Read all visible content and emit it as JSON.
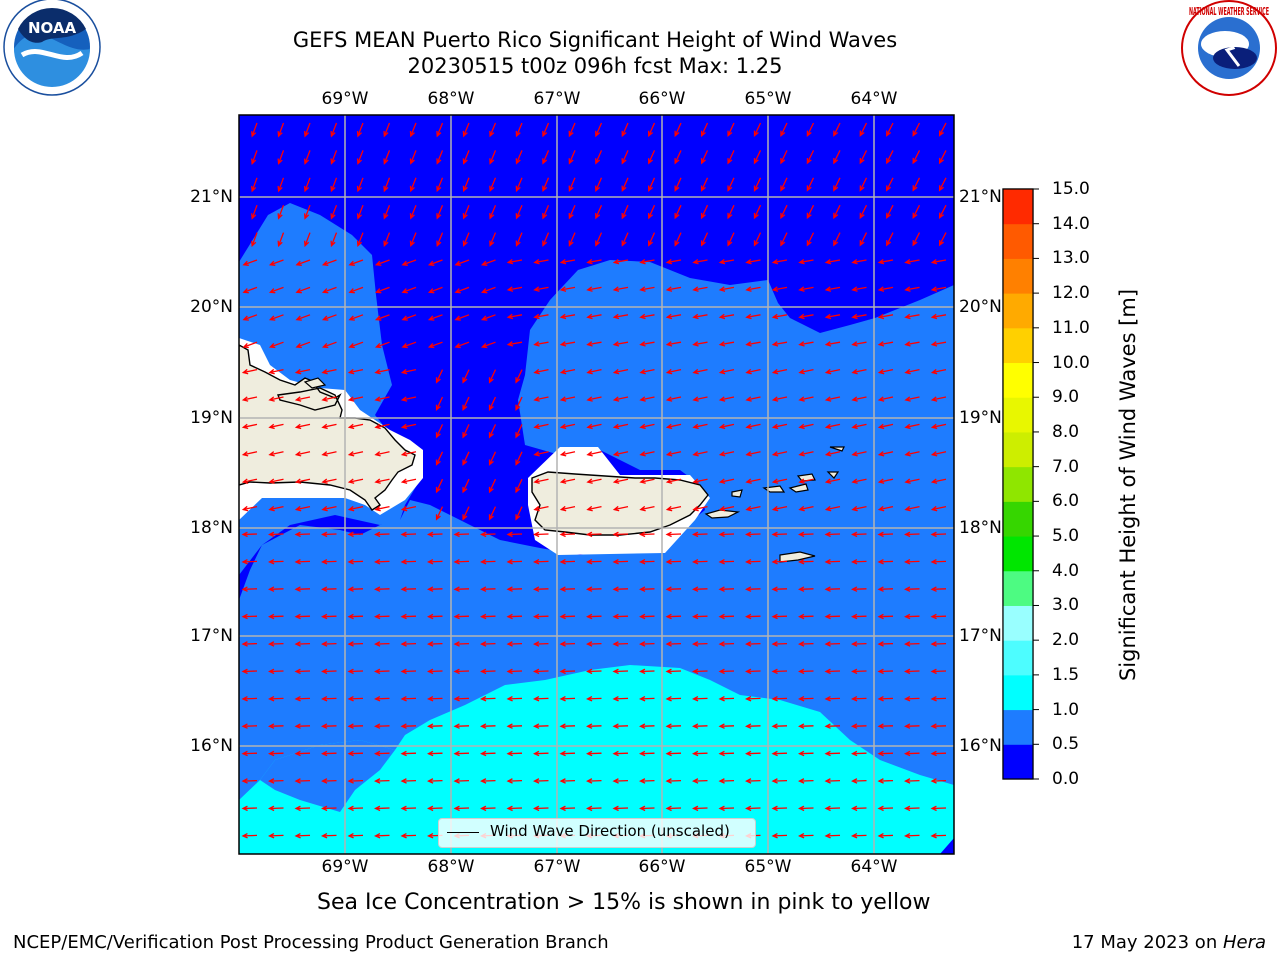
{
  "title": {
    "line1": "GEFS MEAN Puerto Rico Significant Height of Wind Waves",
    "line2": "20230515 t00z 096h fcst   Max: 1.25"
  },
  "map": {
    "lon_labels": [
      "69°W",
      "68°W",
      "67°W",
      "66°W",
      "65°W",
      "64°W"
    ],
    "lat_labels": [
      "21°N",
      "20°N",
      "19°N",
      "18°N",
      "17°N",
      "16°N"
    ],
    "legend_label": "Wind Wave Direction (unscaled)",
    "land_color": "#efedde",
    "arrow_color": "#ff0000"
  },
  "colorbar": {
    "title": "Significant Height of Wind Waves [m]",
    "ticks": [
      "0.0",
      "0.5",
      "1.0",
      "1.5",
      "2.0",
      "3.0",
      "4.0",
      "5.0",
      "6.0",
      "7.0",
      "8.0",
      "9.0",
      "10.0",
      "11.0",
      "12.0",
      "13.0",
      "14.0",
      "15.0"
    ],
    "colors": [
      "#0000ff",
      "#1e7cff",
      "#00ffff",
      "#4dfdff",
      "#99ffff",
      "#4dfb82",
      "#00e600",
      "#36d600",
      "#8fe600",
      "#cdee00",
      "#e8f700",
      "#ffff00",
      "#ffd000",
      "#ffaa00",
      "#ff8000",
      "#ff5a00",
      "#ff2a00"
    ]
  },
  "logos": {
    "noaa_text": "NOAA",
    "nws_text": "NATIONAL WEATHER SERVICE"
  },
  "footer": {
    "sea_ice": "Sea Ice Concentration > 15% is shown in pink to yellow",
    "left": "NCEP/EMC/Verification Post Processing Product Generation Branch",
    "right_prefix": "17 May 2023 on ",
    "right_host": "Hera"
  }
}
